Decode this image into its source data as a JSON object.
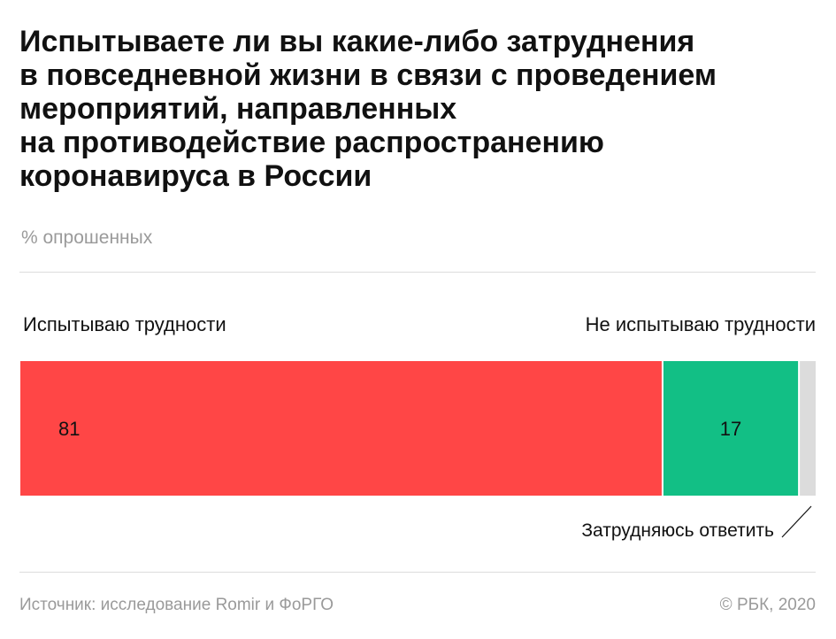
{
  "header": {
    "title_lines": [
      "Испытываете ли вы  какие-либо затруднения",
      "в повседневной жизни в связи с проведением",
      "мероприятий, направленных",
      "на противодействие распространению",
      "коронавируса в России"
    ],
    "subtitle": "% опрошенных"
  },
  "chart_data": {
    "type": "bar",
    "orientation": "horizontal-stacked",
    "title": "Испытываете ли вы  какие-либо затруднения в повседневной жизни в связи с проведением мероприятий, направленных на противодействие распространению коронавируса в России",
    "unit": "% опрошенных",
    "series": [
      {
        "name": "Испытываю трудности",
        "value": 81,
        "label": "81",
        "color": "#ff4646"
      },
      {
        "name": "Не испытываю трудности",
        "value": 17,
        "label": "17",
        "color": "#12bf85"
      },
      {
        "name": "Затрудняюсь ответить",
        "value": 2,
        "label": "",
        "color": "#dcdcdc"
      }
    ],
    "xlim": [
      0,
      100
    ],
    "grid": false
  },
  "labels": {
    "left": "Испытываю трудности",
    "right": "Не испытываю трудности",
    "note": "Затрудняюсь ответить"
  },
  "footer": {
    "source": "Источник: исследование Romir и ФоРГО",
    "copyright": "© РБК, 2020"
  }
}
